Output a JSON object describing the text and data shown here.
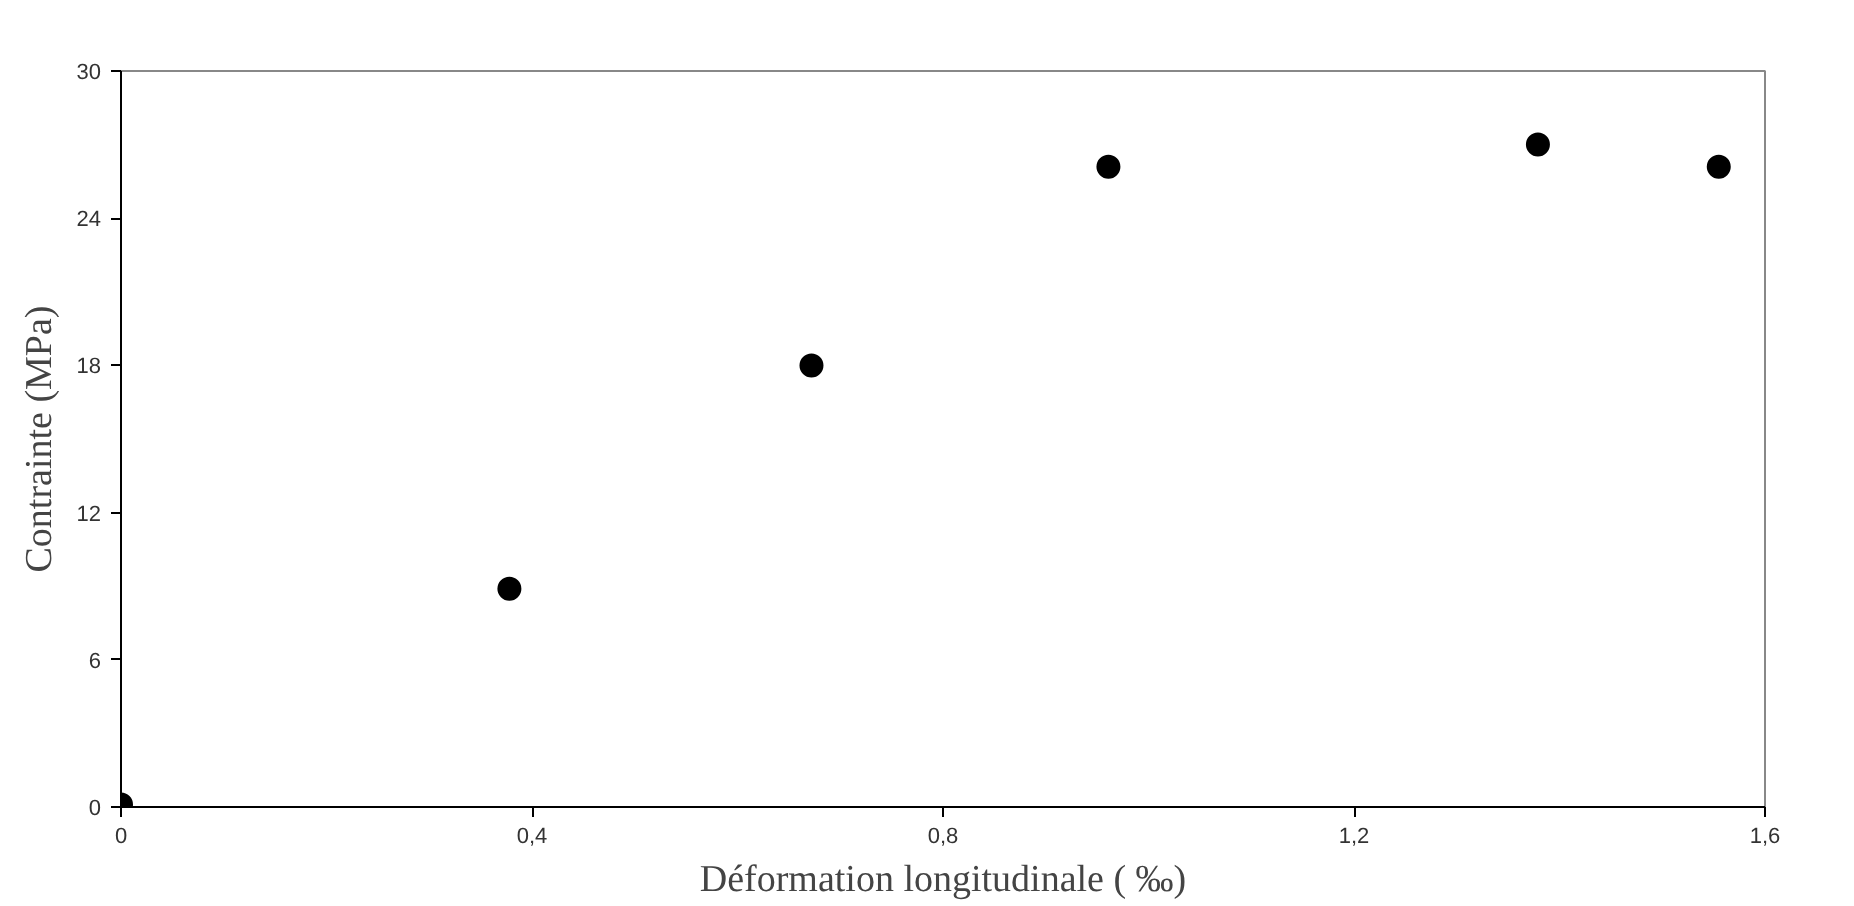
{
  "chart_data": {
    "type": "scatter",
    "xlabel": "Déformation longitudinale ( ‰)",
    "ylabel": "Contrainte (MPa)",
    "x": [
      0,
      0.378,
      0.672,
      0.961,
      1.379,
      1.555
    ],
    "series": [
      {
        "color": "#000000",
        "values": [
          0.1,
          8.9,
          18.0,
          26.1,
          27.0,
          26.1
        ]
      }
    ],
    "xlim": [
      0,
      1.6
    ],
    "ylim": [
      0,
      30
    ],
    "xticks": [
      {
        "value": 0,
        "label": "0"
      },
      {
        "value": 0.4,
        "label": "0,4"
      },
      {
        "value": 0.8,
        "label": "0,8"
      },
      {
        "value": 1.2,
        "label": "1,2"
      },
      {
        "value": 1.6,
        "label": "1,6"
      }
    ],
    "yticks": [
      0,
      6,
      12,
      18,
      24,
      30
    ],
    "grid": false,
    "marker": "circle"
  }
}
